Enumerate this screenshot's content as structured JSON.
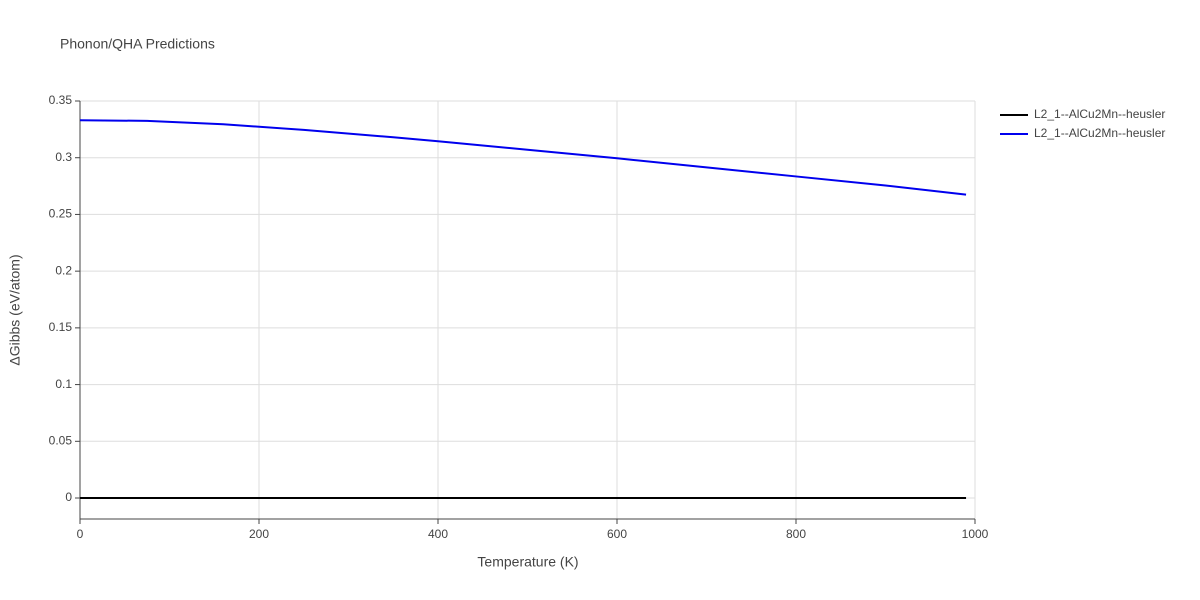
{
  "chart_data": {
    "type": "line",
    "title": "Phonon/QHA Predictions",
    "x_label": "Temperature (K)",
    "y_label": "ΔGibbs (eV/atom)",
    "xlim": [
      0,
      1000
    ],
    "ylim": [
      -0.0185,
      0.35
    ],
    "xticks": [
      0,
      200,
      400,
      600,
      800,
      1000
    ],
    "yticks": [
      0,
      0.05,
      0.1,
      0.15,
      0.2,
      0.25,
      0.3,
      0.35
    ],
    "grid": true,
    "legend": "top-right",
    "series": [
      {
        "name": "L2_1--AlCu2Mn--heusler",
        "color": "#000000",
        "x": [
          0,
          990
        ],
        "values": [
          0,
          0
        ]
      },
      {
        "name": "L2_1--AlCu2Mn--heusler",
        "color": "#0000ee",
        "x": [
          0,
          75,
          160,
          250,
          350,
          400,
          500,
          600,
          700,
          800,
          900,
          990
        ],
        "values": [
          0.333,
          0.3325,
          0.3295,
          0.3245,
          0.318,
          0.3145,
          0.307,
          0.2995,
          0.2915,
          0.2835,
          0.2755,
          0.2675
        ]
      }
    ]
  }
}
